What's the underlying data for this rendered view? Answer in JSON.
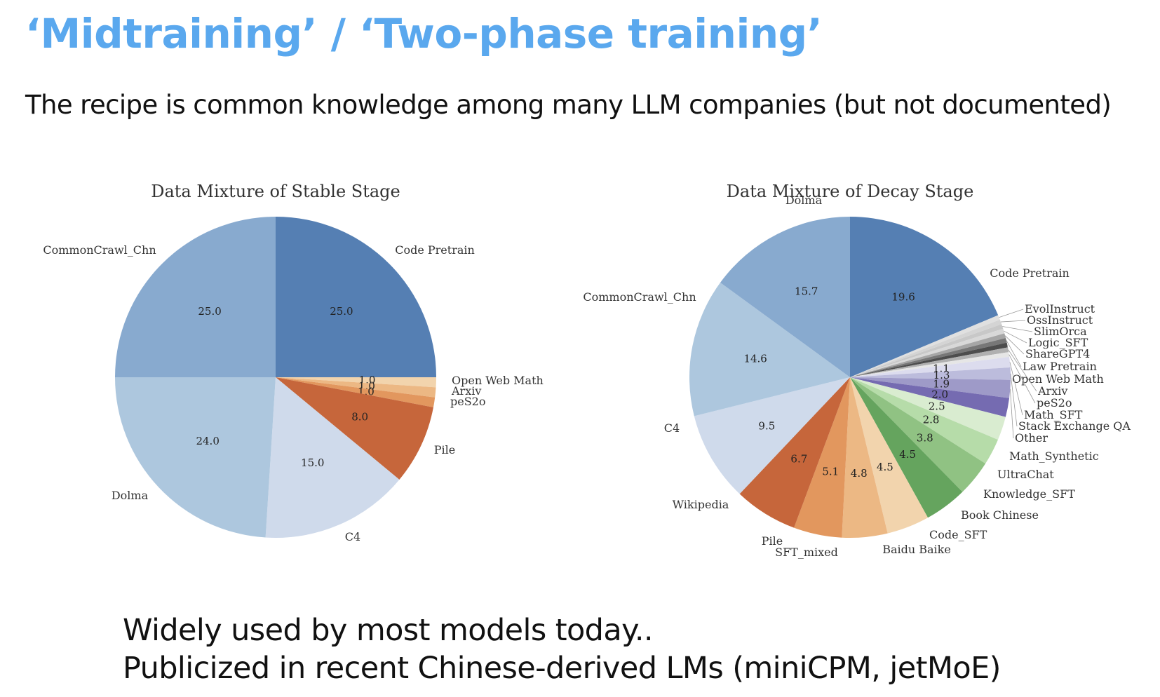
{
  "slide": {
    "title": "‘Midtraining’ / ‘Two-phase training’",
    "subtitle": "The recipe is common knowledge among many LLM companies (but not documented)",
    "footnote_line1": "Widely used by most models today..",
    "footnote_line2": "Publicized in recent Chinese-derived LMs (miniCPM, jetMoE)"
  },
  "chart_data": [
    {
      "type": "pie",
      "title": "Data Mixture of Stable Stage",
      "slices": [
        {
          "label": "Code Pretrain",
          "value": 25.0,
          "display": "25.0",
          "color": "#557fb3"
        },
        {
          "label": "Open Web Math",
          "value": 1.0,
          "display": "1.0",
          "color": "#f2d4ad"
        },
        {
          "label": "Arxiv",
          "value": 1.0,
          "display": "1.0",
          "color": "#ecb884"
        },
        {
          "label": "peS2o",
          "value": 1.0,
          "display": "1.0",
          "color": "#e2975e"
        },
        {
          "label": "Pile",
          "value": 8.0,
          "display": "8.0",
          "color": "#c6663b"
        },
        {
          "label": "C4",
          "value": 15.0,
          "display": "15.0",
          "color": "#cfdaeb"
        },
        {
          "label": "Dolma",
          "value": 24.0,
          "display": "24.0",
          "color": "#adc7de"
        },
        {
          "label": "CommonCrawl_Chn",
          "value": 25.0,
          "display": "25.0",
          "color": "#88aacf"
        }
      ]
    },
    {
      "type": "pie",
      "title": "Data Mixture of Decay Stage",
      "slices": [
        {
          "label": "Code Pretrain",
          "value": 19.6,
          "display": "19.6",
          "color": "#557fb3"
        },
        {
          "label": "EvolInstruct",
          "value": 0.5,
          "display": "",
          "color": "#e0e0e0"
        },
        {
          "label": "OssInstruct",
          "value": 0.5,
          "display": "",
          "color": "#d4d4d4"
        },
        {
          "label": "SlimOrca",
          "value": 0.5,
          "display": "",
          "color": "#c8c8c8"
        },
        {
          "label": "Logic_SFT",
          "value": 0.5,
          "display": "",
          "color": "#d8d8d8"
        },
        {
          "label": "ShareGPT4",
          "value": 0.5,
          "display": "",
          "color": "#a6a6a6"
        },
        {
          "label": "Law Pretrain",
          "value": 0.5,
          "display": "",
          "color": "#777777"
        },
        {
          "label": "Open Web Math",
          "value": 0.5,
          "display": "",
          "color": "#4d4d4d"
        },
        {
          "label": "Arxiv",
          "value": 0.5,
          "display": "",
          "color": "#b0b0b0"
        },
        {
          "label": "peS2o",
          "value": 0.5,
          "display": "",
          "color": "#e6e6e6"
        },
        {
          "label": "Math_SFT",
          "value": 1.1,
          "display": "1.1",
          "color": "#dcdcee"
        },
        {
          "label": "Stack Exchange QA",
          "value": 1.3,
          "display": "1.3",
          "color": "#bcbcdc"
        },
        {
          "label": "Other",
          "value": 1.9,
          "display": "1.9",
          "color": "#9e9ac8"
        },
        {
          "label": "Math_Synthetic",
          "value": 2.0,
          "display": "2.0",
          "color": "#756bb1"
        },
        {
          "label": "UltraChat",
          "value": 2.5,
          "display": "2.5",
          "color": "#d9ecd0"
        },
        {
          "label": "Knowledge_SFT",
          "value": 2.8,
          "display": "2.8",
          "color": "#b6dca9"
        },
        {
          "label": "Book Chinese",
          "value": 3.8,
          "display": "3.8",
          "color": "#90c283"
        },
        {
          "label": "Code_SFT",
          "value": 4.5,
          "display": "4.5",
          "color": "#65a45e"
        },
        {
          "label": "Baidu Baike",
          "value": 4.5,
          "display": "4.5",
          "color": "#f2d4ad"
        },
        {
          "label": "SFT_mixed",
          "value": 4.8,
          "display": "4.8",
          "color": "#ecb884"
        },
        {
          "label": "Pile",
          "value": 5.1,
          "display": "5.1",
          "color": "#e2975e"
        },
        {
          "label": "Wikipedia",
          "value": 6.7,
          "display": "6.7",
          "color": "#c6663b"
        },
        {
          "label": "C4",
          "value": 9.5,
          "display": "9.5",
          "color": "#cfdaeb"
        },
        {
          "label": "CommonCrawl_Chn",
          "value": 14.6,
          "display": "14.6",
          "color": "#adc7de"
        },
        {
          "label": "Dolma",
          "value": 15.7,
          "display": "15.7",
          "color": "#88aacf"
        }
      ]
    }
  ]
}
